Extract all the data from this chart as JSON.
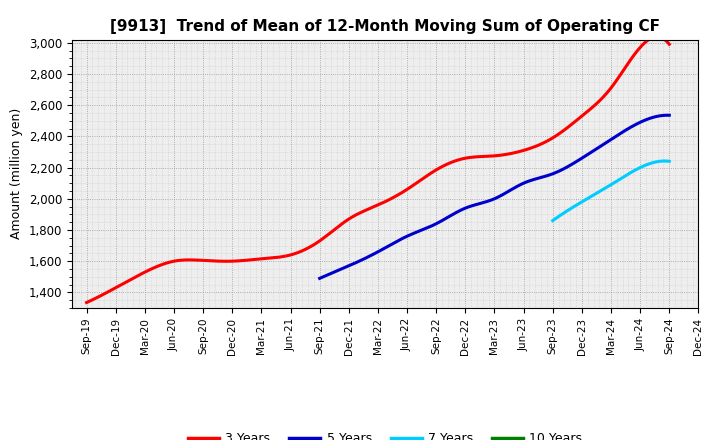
{
  "title": "[9913]  Trend of Mean of 12-Month Moving Sum of Operating CF",
  "ylabel": "Amount (million yen)",
  "background_color": "#ffffff",
  "plot_background_color": "#eeeeee",
  "grid_color": "#999999",
  "ylim": [
    1300,
    3020
  ],
  "yticks": [
    1400,
    1600,
    1800,
    2000,
    2200,
    2400,
    2600,
    2800,
    3000
  ],
  "x_labels": [
    "Sep-19",
    "Dec-19",
    "Mar-20",
    "Jun-20",
    "Sep-20",
    "Dec-20",
    "Mar-21",
    "Jun-21",
    "Sep-21",
    "Dec-21",
    "Mar-22",
    "Jun-22",
    "Sep-22",
    "Dec-22",
    "Mar-23",
    "Jun-23",
    "Sep-23",
    "Dec-23",
    "Mar-24",
    "Jun-24",
    "Sep-24",
    "Dec-24"
  ],
  "series": {
    "3 Years": {
      "color": "#ff0000",
      "x_idx": [
        0,
        1,
        2,
        3,
        4,
        5,
        6,
        7,
        8,
        9,
        10,
        11,
        12,
        13,
        14,
        15,
        16,
        17,
        18,
        19,
        20
      ],
      "y": [
        1335,
        1430,
        1530,
        1600,
        1605,
        1600,
        1615,
        1640,
        1730,
        1870,
        1960,
        2060,
        2185,
        2260,
        2275,
        2310,
        2390,
        2530,
        2710,
        2970,
        2990
      ]
    },
    "5 Years": {
      "color": "#0000cc",
      "x_idx": [
        8,
        9,
        10,
        11,
        12,
        13,
        14,
        15,
        16,
        17,
        18,
        19,
        20
      ],
      "y": [
        1490,
        1570,
        1660,
        1760,
        1840,
        1940,
        2000,
        2100,
        2160,
        2260,
        2380,
        2490,
        2535
      ]
    },
    "7 Years": {
      "color": "#00ccff",
      "x_idx": [
        16,
        17,
        18,
        19,
        20
      ],
      "y": [
        1860,
        1980,
        2090,
        2200,
        2240
      ]
    },
    "10 Years": {
      "color": "#008000",
      "x_idx": [],
      "y": []
    }
  },
  "legend_order": [
    "3 Years",
    "5 Years",
    "7 Years",
    "10 Years"
  ],
  "legend_colors": [
    "#ff0000",
    "#0000cc",
    "#00ccff",
    "#008000"
  ]
}
